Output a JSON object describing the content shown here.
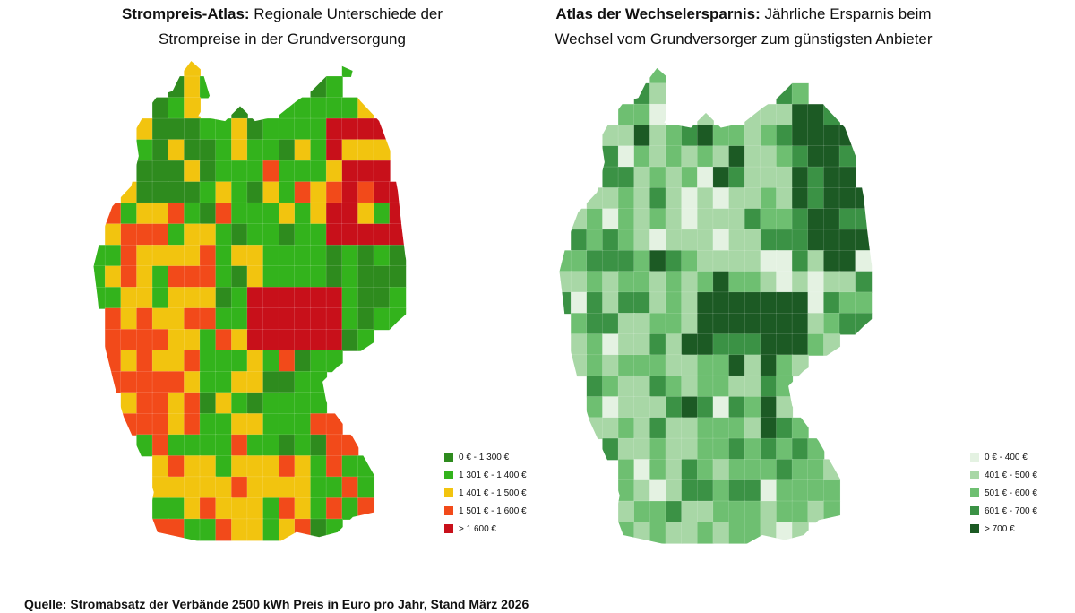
{
  "left_map": {
    "title_bold": "Strompreis-Atlas:",
    "title_rest": " Regionale Unterschiede der",
    "title_line2": "Strompreise in der Grundversorgung",
    "legend": [
      {
        "label": "0 € - 1 300 €",
        "color": "#2e8b1e"
      },
      {
        "label": "1 301 € - 1 400 €",
        "color": "#33b31c"
      },
      {
        "label": "1 401 € - 1 500 €",
        "color": "#f2c40f"
      },
      {
        "label": "1 501 € - 1 600 €",
        "color": "#f24a1a"
      },
      {
        "label": "> 1 600 €",
        "color": "#c8101a"
      }
    ]
  },
  "right_map": {
    "title_bold": "Atlas der Wechselersparnis:",
    "title_rest": " Jährliche Ersparnis beim",
    "title_line2": "Wechsel vom Grundversorger zum günstigsten Anbieter",
    "legend": [
      {
        "label": "0 € - 400 €",
        "color": "#e4f2e2"
      },
      {
        "label": "401 € - 500 €",
        "color": "#a8d7a6"
      },
      {
        "label": "501 € - 600 €",
        "color": "#6ebf71"
      },
      {
        "label": "601 € - 700 €",
        "color": "#3b9245"
      },
      {
        "label": "> 700 €",
        "color": "#1c5a24"
      }
    ]
  },
  "source": "Quelle: Stromabsatz der Verbände 2500 kWh Preis in Euro pro Jahr, Stand März 2026"
}
